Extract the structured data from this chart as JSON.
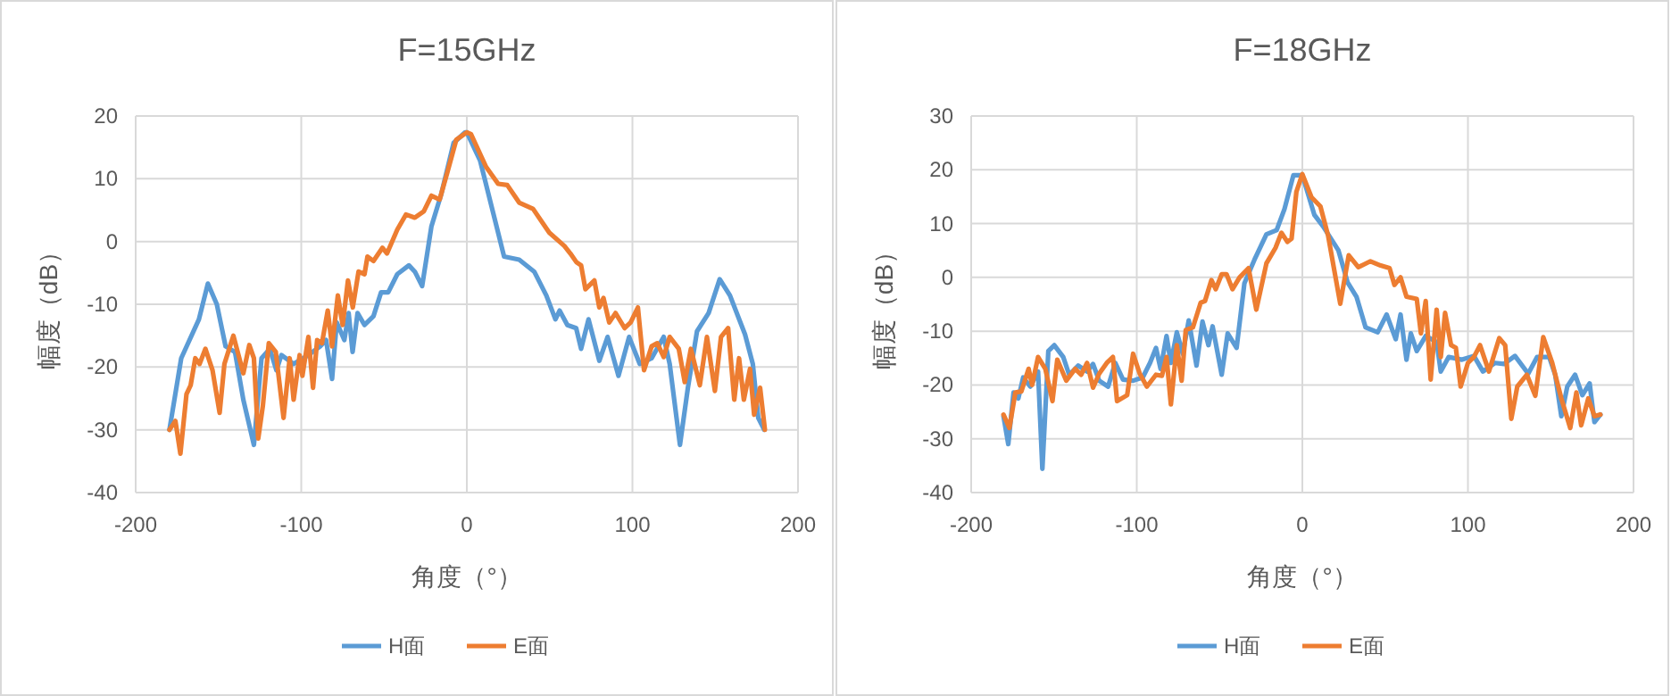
{
  "chart_data": [
    {
      "type": "line",
      "title": "F=15GHz",
      "xlabel": "角度（°）",
      "ylabel": "幅度（dB）",
      "xlim": [
        -200,
        200
      ],
      "xticks": [
        -200,
        -100,
        0,
        100,
        200
      ],
      "ylim": [
        -40,
        20
      ],
      "yticks": [
        -40,
        -30,
        -20,
        -10,
        0,
        10,
        20
      ],
      "grid": true,
      "legend": "bottom",
      "marker": "none",
      "line_style": "solid",
      "series": [
        {
          "name": "H面",
          "color": "#5b9bd5",
          "x": [
            -179.6,
            -172.5,
            -161.8,
            -156.4,
            -151,
            -145.7,
            -140,
            -135,
            -128.6,
            -124,
            -119,
            -115,
            -112,
            -104.6,
            -95.7,
            -88.6,
            -85,
            -81.4,
            -78.6,
            -74,
            -71.4,
            -69,
            -66,
            -61.8,
            -56.4,
            -51.8,
            -47.5,
            -42,
            -35,
            -31.4,
            -27,
            -21.4,
            -15.4,
            -8,
            -1,
            0,
            8,
            15.3,
            22.5,
            31.6,
            40.7,
            48,
            53.5,
            56,
            60.7,
            66,
            69,
            73.5,
            80,
            85,
            91.6,
            98,
            104.4,
            111.6,
            118.9,
            122.5,
            128.7,
            133.5,
            139,
            146,
            152.7,
            158.9,
            168,
            172.7,
            176,
            179.6
          ],
          "values": [
            -30,
            -18.6,
            -12.4,
            -6.7,
            -10,
            -16.7,
            -17.6,
            -25.2,
            -32.4,
            -18.6,
            -17.1,
            -20.5,
            -18.1,
            -19.5,
            -18.1,
            -16.7,
            -15.7,
            -21.9,
            -12.9,
            -15.7,
            -11.4,
            -17.6,
            -11.4,
            -13.3,
            -11.9,
            -8.1,
            -8.1,
            -5.2,
            -3.8,
            -4.8,
            -7.1,
            2.4,
            7.6,
            15.7,
            17.4,
            17.4,
            12.9,
            5.2,
            -2.4,
            -2.9,
            -4.8,
            -8.6,
            -12.4,
            -11,
            -13.3,
            -13.8,
            -17.1,
            -12.4,
            -19,
            -15.2,
            -21.4,
            -15.2,
            -19.5,
            -18.6,
            -15.2,
            -19.5,
            -32.4,
            -23.3,
            -14.3,
            -11.4,
            -6,
            -8.6,
            -14.8,
            -19.5,
            -28.1,
            -30
          ]
        },
        {
          "name": "E面",
          "color": "#ed7d31",
          "x": [
            -179.6,
            -176,
            -173,
            -169.3,
            -166.8,
            -164,
            -161.4,
            -157.9,
            -153.6,
            -149.3,
            -146.4,
            -141,
            -135,
            -131.4,
            -128.6,
            -126,
            -123.2,
            -119.6,
            -115.4,
            -110.7,
            -107,
            -104.6,
            -101,
            -99.3,
            -95.7,
            -92.9,
            -90.4,
            -87.5,
            -84,
            -81.4,
            -77.9,
            -75,
            -71.8,
            -68.9,
            -65.4,
            -61.8,
            -60,
            -56.4,
            -51,
            -48.2,
            -42,
            -36.8,
            -31.4,
            -26,
            -21.4,
            -16.4,
            -11.8,
            -6.4,
            0,
            2.5,
            11.6,
            18.9,
            24.4,
            31.6,
            40,
            49.8,
            58.9,
            62.5,
            66.2,
            69,
            71.6,
            77,
            80,
            82.5,
            86,
            89.8,
            95.3,
            98.9,
            103.3,
            107,
            111.6,
            115,
            118.9,
            122.5,
            128,
            131.6,
            135.3,
            140.7,
            145,
            149.8,
            153.5,
            157.8,
            161.5,
            164.4,
            167.3,
            171,
            173.5,
            177.1,
            180
          ],
          "values": [
            -30,
            -28.6,
            -33.8,
            -24.3,
            -22.9,
            -18.6,
            -19.5,
            -17.1,
            -20.5,
            -27.3,
            -19.5,
            -15,
            -21,
            -16.5,
            -18.6,
            -31.4,
            -26.2,
            -16.2,
            -17.6,
            -28.1,
            -18.6,
            -25.2,
            -18.1,
            -21.4,
            -15.2,
            -23.3,
            -15.7,
            -16.2,
            -11,
            -16.7,
            -8.6,
            -13.3,
            -6.2,
            -10.5,
            -4.8,
            -5.2,
            -2.4,
            -3.1,
            -1,
            -1.9,
            1.9,
            4.3,
            3.8,
            4.8,
            7.3,
            6.7,
            11,
            16.2,
            17.4,
            17.1,
            11.9,
            9.2,
            9,
            6.2,
            5.2,
            1.4,
            -0.7,
            -1.9,
            -3.3,
            -3.8,
            -7.6,
            -6.2,
            -10.5,
            -9,
            -12.9,
            -11.4,
            -13.8,
            -12.9,
            -10.5,
            -20.5,
            -16.7,
            -16.2,
            -18.4,
            -15.2,
            -17.1,
            -22.4,
            -17.1,
            -22.9,
            -15.2,
            -23.8,
            -15.2,
            -13.8,
            -25.2,
            -18.6,
            -25.2,
            -20.3,
            -27.6,
            -23.3,
            -30
          ]
        }
      ]
    },
    {
      "type": "line",
      "title": "F=18GHz",
      "xlabel": "角度（°）",
      "ylabel": "幅度（dB）",
      "xlim": [
        -200,
        200
      ],
      "xticks": [
        -200,
        -100,
        0,
        100,
        200
      ],
      "ylim": [
        -40,
        30
      ],
      "yticks": [
        -40,
        -30,
        -20,
        -10,
        0,
        10,
        20,
        30
      ],
      "grid": true,
      "legend": "bottom",
      "marker": "none",
      "line_style": "solid",
      "series": [
        {
          "name": "H面",
          "color": "#5b9bd5",
          "x": [
            -180.5,
            -177.6,
            -174.4,
            -171.5,
            -168.6,
            -164.3,
            -159.6,
            -157,
            -153.4,
            -149.8,
            -144.4,
            -140.8,
            -135.4,
            -130,
            -126.4,
            -122.7,
            -117.3,
            -113,
            -108.3,
            -102.2,
            -96.4,
            -92,
            -88.4,
            -85.6,
            -82,
            -79.4,
            -75.8,
            -72.2,
            -68.6,
            -63.9,
            -60.3,
            -56.7,
            -54.2,
            -48.7,
            -45.1,
            -39.7,
            -35,
            -28.9,
            -21.7,
            -15.5,
            -10.8,
            -5.4,
            0,
            7.3,
            12.7,
            21.8,
            27.3,
            32.7,
            38.2,
            45.5,
            50.9,
            56.4,
            59.3,
            62.9,
            65.5,
            69.1,
            74.5,
            81.1,
            83.6,
            88.4,
            96.4,
            103.6,
            109.1,
            116.4,
            121.8,
            128.4,
            136.4,
            141.8,
            149.1,
            152.7,
            156.4,
            160,
            164.7,
            169.1,
            173.5,
            176.4,
            180
          ],
          "values": [
            -25.8,
            -31,
            -21.4,
            -22.5,
            -18.6,
            -20.3,
            -17.5,
            -35.6,
            -13.7,
            -12.6,
            -14.8,
            -18.1,
            -16.4,
            -17.5,
            -16.1,
            -19.2,
            -20.3,
            -15.9,
            -19,
            -19.2,
            -18.6,
            -15.9,
            -13.1,
            -17,
            -10.9,
            -15.9,
            -10.2,
            -14.2,
            -8,
            -16.4,
            -8.2,
            -12.6,
            -9.1,
            -18.1,
            -10.4,
            -13.1,
            -1.1,
            3.3,
            8,
            8.8,
            12.7,
            19,
            19,
            11.6,
            9.4,
            5,
            -0.9,
            -3.6,
            -9.3,
            -10.2,
            -6.9,
            -11.5,
            -6.9,
            -15.3,
            -10.4,
            -13.7,
            -10.9,
            -12,
            -17.5,
            -14.8,
            -15.3,
            -14.6,
            -17.5,
            -15.9,
            -16.1,
            -14.6,
            -17.9,
            -14.8,
            -14.8,
            -18.1,
            -25.8,
            -20.3,
            -18.1,
            -21.9,
            -19.7,
            -26.9,
            -25.5
          ]
        },
        {
          "name": "E面",
          "color": "#ed7d31",
          "x": [
            -180.5,
            -176.9,
            -173.3,
            -169.7,
            -165.3,
            -163.2,
            -159.6,
            -155.2,
            -150.9,
            -148,
            -142.6,
            -137.2,
            -133.6,
            -130,
            -126.4,
            -122.7,
            -118.1,
            -114.4,
            -111.9,
            -105.8,
            -102.2,
            -98.2,
            -93.9,
            -88.4,
            -84.8,
            -82,
            -79.4,
            -75.8,
            -72.9,
            -70.4,
            -66.1,
            -61.4,
            -58.8,
            -54.9,
            -52.3,
            -48.7,
            -45.8,
            -42.2,
            -37.9,
            -32.5,
            -27.8,
            -21.7,
            -16.2,
            -12.6,
            -9,
            -6.5,
            -3.6,
            0,
            5.5,
            10.9,
            15.6,
            22.9,
            28,
            33.8,
            41.1,
            47.3,
            52.7,
            55.6,
            59.3,
            62.9,
            69.1,
            71.6,
            74.5,
            77.5,
            81.1,
            83.6,
            86.2,
            89.8,
            92.7,
            95.6,
            100,
            103.6,
            107.3,
            112.7,
            118.9,
            122.5,
            126.2,
            129.8,
            135.6,
            140.7,
            145.5,
            150.9,
            156.4,
            161.8,
            165.5,
            168.4,
            172.7,
            176.4,
            180
          ],
          "values": [
            -25.5,
            -28,
            -21.4,
            -21.2,
            -17,
            -20,
            -14.8,
            -17,
            -23,
            -15.3,
            -19.2,
            -17,
            -18.1,
            -15.9,
            -20.5,
            -17.9,
            -15.9,
            -14.8,
            -23,
            -21.9,
            -14.2,
            -17.9,
            -20.3,
            -18.1,
            -18.3,
            -14.8,
            -23.6,
            -12.6,
            -19.2,
            -9.8,
            -9.3,
            -4.7,
            -4.4,
            -0.5,
            -2.2,
            0.6,
            0.6,
            -2.2,
            0,
            1.7,
            -6,
            2.6,
            5.5,
            8.3,
            6.6,
            7.2,
            15.9,
            19.2,
            14.9,
            13.2,
            7.7,
            -4.9,
            4.1,
            1.9,
            3,
            2.2,
            1.7,
            -1.4,
            0,
            -3.6,
            -4,
            -10.4,
            -4.4,
            -19,
            -6,
            -14.8,
            -6.6,
            -12.6,
            -13.1,
            -20.3,
            -15.9,
            -14.8,
            -12.6,
            -17.5,
            -11.3,
            -12.6,
            -26.3,
            -20.3,
            -18.1,
            -22,
            -11.1,
            -15.9,
            -22.5,
            -28,
            -21.4,
            -27.5,
            -22.5,
            -25.8,
            -25.5
          ]
        }
      ]
    }
  ]
}
